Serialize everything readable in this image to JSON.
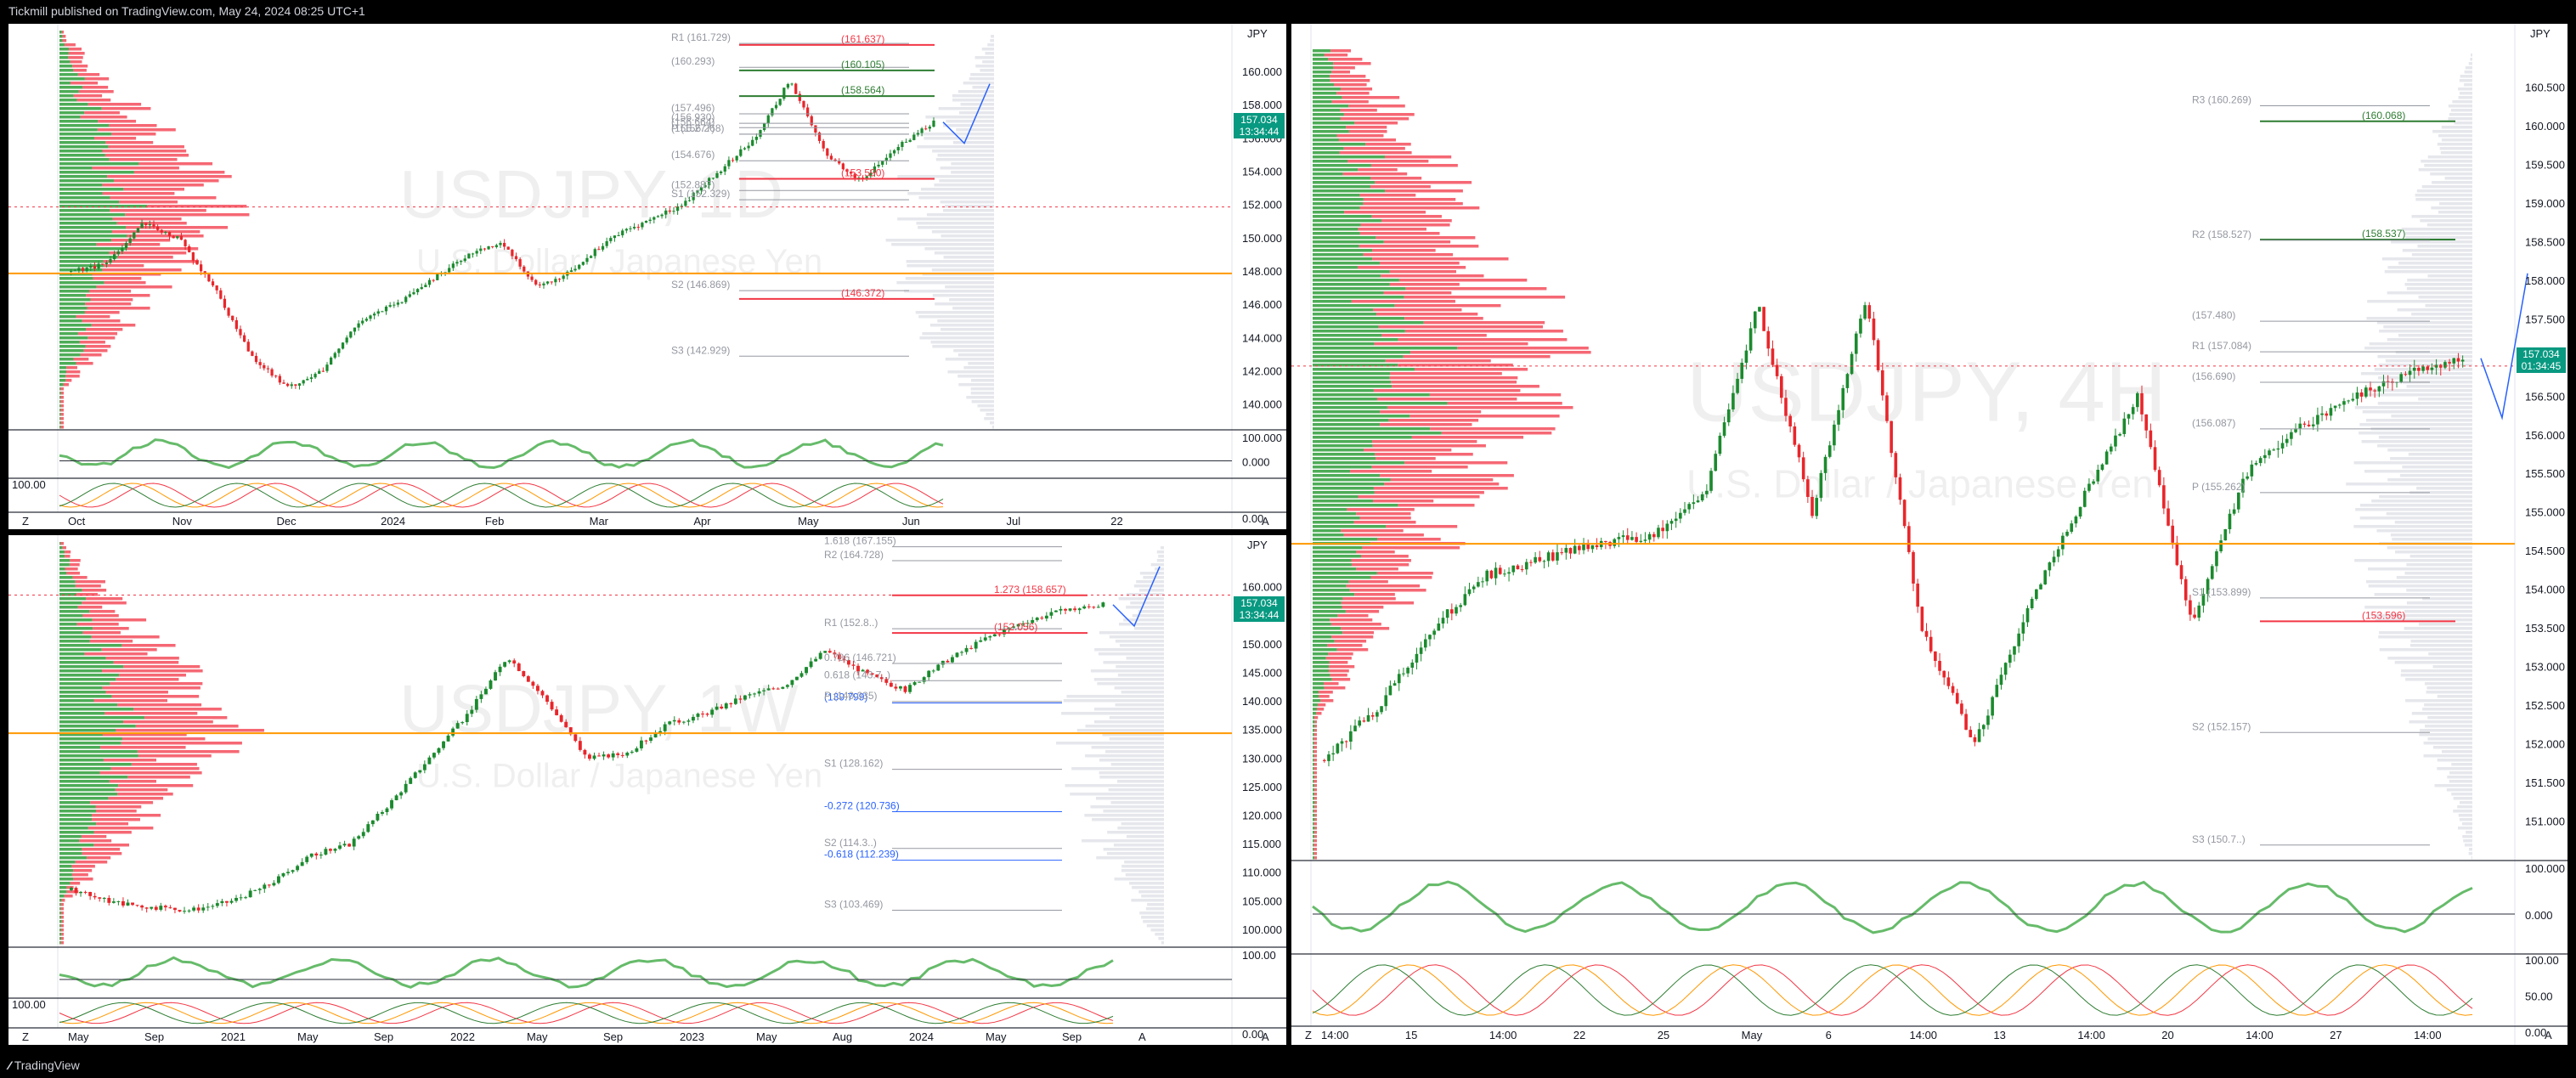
{
  "header": {
    "publisher": "Tickmill published on TradingView.com, May 24, 2024 08:25 UTC+1"
  },
  "footer": {
    "brand": "TradingView",
    "logo_icon": "tradingview-logo-icon"
  },
  "colors": {
    "up": "#089981",
    "down": "#f23645",
    "bull_bar": "#1b8a2e",
    "bear_bar": "#e8262b",
    "pivot_green": "#2e7d32",
    "pivot_red": "#f23645",
    "orange": "#ff9800",
    "blue": "#2962ff"
  },
  "chart_data": [
    {
      "id": "daily",
      "type": "candlestick",
      "watermark": {
        "symbol": "USDJPY, 1D",
        "name": "U.S. Dollar / Japanese Yen"
      },
      "currency": "JPY",
      "last_price": "157.034",
      "countdown": "13:34:44",
      "ylim": [
        138.5,
        162.5
      ],
      "yticks": [
        "160.000",
        "158.000",
        "156.000",
        "154.000",
        "152.000",
        "150.000",
        "148.000",
        "146.000",
        "144.000",
        "142.000",
        "140.000"
      ],
      "xticks": [
        "Oct",
        "Nov",
        "Dec",
        "2024",
        "Feb",
        "Mar",
        "Apr",
        "May",
        "Jun",
        "Jul",
        "22"
      ],
      "levels": [
        {
          "label": "R1 (161.729)",
          "value": 161.729
        },
        {
          "label": "(161.637)",
          "value": 161.637
        },
        {
          "label": "(160.293)",
          "value": 160.293
        },
        {
          "label": "(160.105)",
          "value": 160.105
        },
        {
          "label": "(158.564)",
          "value": 158.564
        },
        {
          "label": "(157.496)",
          "value": 157.496
        },
        {
          "label": "P (156.268)",
          "value": 156.268
        },
        {
          "label": "(156.930)",
          "value": 156.93
        },
        {
          "label": "(156.664)",
          "value": 156.664
        },
        {
          "label": "(156.277)",
          "value": 156.277
        },
        {
          "label": "(154.676)",
          "value": 154.676
        },
        {
          "label": "(153.590)",
          "value": 153.59
        },
        {
          "label": "(152.887)",
          "value": 152.887
        },
        {
          "label": "S1 (152.329)",
          "value": 152.329
        },
        {
          "label": "S2 (146.869)",
          "value": 146.869
        },
        {
          "label": "(146.372)",
          "value": 146.372
        },
        {
          "label": "S3 (142.929)",
          "value": 142.929
        }
      ],
      "osc1": {
        "yticks": [
          "100.000",
          "0.000"
        ]
      },
      "osc2": {
        "yticks": [
          "100.00",
          "0.00"
        ]
      },
      "bottom_buttons": [
        "Z",
        "A"
      ]
    },
    {
      "id": "weekly",
      "type": "candlestick",
      "watermark": {
        "symbol": "USDJPY, 1W",
        "name": "U.S. Dollar / Japanese Yen"
      },
      "currency": "JPY",
      "last_price": "157.034",
      "countdown": "13:34:44",
      "ylim": [
        97,
        168
      ],
      "yticks": [
        "160.000",
        "155.000",
        "150.000",
        "145.000",
        "140.000",
        "135.000",
        "130.000",
        "125.000",
        "120.000",
        "115.000",
        "110.000",
        "105.000",
        "100.000"
      ],
      "xticks": [
        "May",
        "Sep",
        "2021",
        "May",
        "Sep",
        "2022",
        "May",
        "Sep",
        "2023",
        "May",
        "Aug",
        "2024",
        "May",
        "Sep",
        "A"
      ],
      "levels": [
        {
          "label": "1.618 (167.155)",
          "value": 167.155
        },
        {
          "label": "R2 (164.728)",
          "value": 164.728
        },
        {
          "label": "1.273 (158.657)",
          "value": 158.657
        },
        {
          "label": "R1 (152.8..)",
          "value": 152.8
        },
        {
          "label": "(152.056)",
          "value": 152.056
        },
        {
          "label": "0.786 (146.721)",
          "value": 146.721
        },
        {
          "label": "0.618 (143.7..)",
          "value": 143.7
        },
        {
          "label": "(139.799)",
          "value": 139.799
        },
        {
          "label": "P (140.035)",
          "value": 140.035
        },
        {
          "label": "S1 (128.162)",
          "value": 128.162
        },
        {
          "label": "-0.272 (120.736)",
          "value": 120.736
        },
        {
          "label": "S2 (114.3..)",
          "value": 114.3
        },
        {
          "label": "-0.618 (112.239)",
          "value": 112.239
        },
        {
          "label": "S3 (103.469)",
          "value": 103.469
        }
      ],
      "osc1": {
        "yticks": [
          "100.00"
        ]
      },
      "osc2": {
        "yticks": [
          "100.00",
          "0.00"
        ]
      },
      "bottom_buttons": [
        "Z",
        "A"
      ]
    },
    {
      "id": "h4",
      "type": "candlestick",
      "watermark": {
        "symbol": "USDJPY, 4H",
        "name": "U.S. Dollar / Japanese Yen"
      },
      "currency": "JPY",
      "last_price": "157.034",
      "countdown": "01:34:45",
      "ylim": [
        150.5,
        161.0
      ],
      "yticks": [
        "160.500",
        "160.000",
        "159.500",
        "159.000",
        "158.500",
        "158.000",
        "157.500",
        "157.000",
        "156.500",
        "156.000",
        "155.500",
        "155.000",
        "154.500",
        "154.000",
        "153.500",
        "153.000",
        "152.500",
        "152.000",
        "151.500",
        "151.000"
      ],
      "xticks": [
        "14:00",
        "15",
        "14:00",
        "22",
        "25",
        "May",
        "6",
        "14:00",
        "13",
        "14:00",
        "20",
        "14:00",
        "27",
        "14:00"
      ],
      "levels": [
        {
          "label": "R3 (160.269)",
          "value": 160.269
        },
        {
          "label": "(160.068)",
          "value": 160.068
        },
        {
          "label": "(158.537)",
          "value": 158.537
        },
        {
          "label": "R2 (158.527)",
          "value": 158.527
        },
        {
          "label": "(157.480)",
          "value": 157.48
        },
        {
          "label": "R1 (157.084)",
          "value": 157.084
        },
        {
          "label": "(156.690)",
          "value": 156.69
        },
        {
          "label": "(156.087)",
          "value": 156.087
        },
        {
          "label": "P (155.262)",
          "value": 155.262
        },
        {
          "label": "S1 (153.899)",
          "value": 153.899
        },
        {
          "label": "(153.596)",
          "value": 153.596
        },
        {
          "label": "S2 (152.157)",
          "value": 152.157
        },
        {
          "label": "S3 (150.7..)",
          "value": 150.7
        }
      ],
      "osc1": {
        "yticks": [
          "100.000",
          "0.000"
        ]
      },
      "osc2": {
        "yticks": [
          "100.00",
          "50.00",
          "0.00"
        ]
      },
      "bottom_buttons": [
        "Z",
        "A"
      ]
    }
  ]
}
